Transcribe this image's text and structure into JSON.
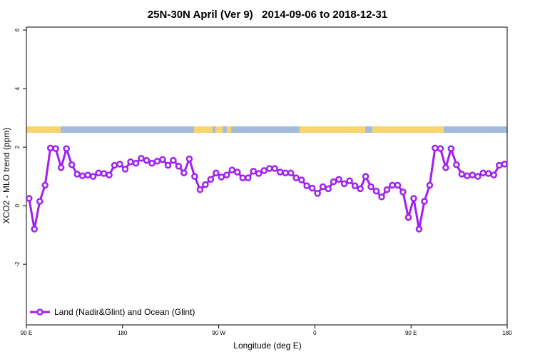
{
  "chart_data": {
    "type": "line",
    "title": "25N-30N April (Ver 9)   2014-09-06 to 2018-12-31",
    "x_label": "Longitude (deg E)",
    "y_label": "XCO2 - MLO trend (ppm)",
    "x": [
      92.5,
      97.5,
      102.5,
      107.5,
      112.5,
      117.5,
      122.5,
      127.5,
      132.5,
      137.5,
      142.5,
      147.5,
      152.5,
      157.5,
      162.5,
      167.5,
      172.5,
      177.5,
      182.5,
      187.5,
      192.5,
      197.5,
      202.5,
      207.5,
      212.5,
      217.5,
      222.5,
      227.5,
      232.5,
      237.5,
      242.5,
      247.5,
      252.5,
      257.5,
      262.5,
      267.5,
      272.5,
      277.5,
      282.5,
      287.5,
      292.5,
      297.5,
      302.5,
      307.5,
      312.5,
      317.5,
      322.5,
      327.5,
      332.5,
      337.5,
      342.5,
      347.5,
      352.5,
      357.5,
      362.5,
      367.5,
      372.5,
      377.5,
      382.5,
      387.5,
      392.5,
      397.5,
      402.5,
      407.5,
      412.5,
      417.5,
      422.5,
      427.5,
      432.5,
      437.5,
      442.5,
      447.5,
      452.5,
      457.5,
      462.5,
      467.5,
      472.5,
      477.5,
      482.5,
      487.5,
      492.5,
      497.5,
      502.5,
      507.5,
      512.5,
      517.5,
      522.5,
      527.5,
      532.5,
      537.5
    ],
    "series": [
      {
        "name": "Land (Nadir&Glint) and Ocean (Glint)",
        "color": "#a020f0",
        "values": [
          0.25,
          -0.8,
          0.15,
          0.7,
          1.97,
          1.95,
          1.3,
          1.95,
          1.4,
          1.08,
          1.02,
          1.05,
          1.0,
          1.12,
          1.1,
          1.05,
          1.38,
          1.42,
          1.25,
          1.5,
          1.45,
          1.62,
          1.55,
          1.45,
          1.52,
          1.58,
          1.38,
          1.55,
          1.35,
          1.12,
          1.6,
          1.0,
          0.55,
          0.72,
          0.9,
          1.12,
          0.98,
          1.05,
          1.22,
          1.15,
          0.95,
          0.95,
          1.18,
          1.1,
          1.2,
          1.27,
          1.27,
          1.15,
          1.12,
          1.12,
          0.95,
          0.88,
          0.68,
          0.6,
          0.42,
          0.65,
          0.58,
          0.82,
          0.9,
          0.75,
          0.85,
          0.68,
          0.58,
          1.0,
          0.65,
          0.5,
          0.3,
          0.55,
          0.7,
          0.7,
          0.47,
          -0.4,
          0.25,
          -0.8,
          0.15,
          0.7,
          1.97,
          1.95,
          1.3,
          1.95,
          1.4,
          1.08,
          1.02,
          1.05,
          1.0,
          1.12,
          1.1,
          1.05,
          1.38,
          1.42
        ]
      }
    ],
    "xlim": [
      90,
      540
    ],
    "xticks": [
      {
        "value": 90,
        "label": "90 E"
      },
      180,
      {
        "value": 270,
        "label": "90 W"
      },
      {
        "value": 360,
        "label": "0"
      },
      {
        "value": 450,
        "label": "90 E"
      },
      {
        "value": 540,
        "label": "180"
      }
    ],
    "ylim": [
      -4.07,
      6.1
    ],
    "yticks": [
      -2,
      0,
      2,
      4,
      6
    ],
    "legend": "bottom-left"
  }
}
